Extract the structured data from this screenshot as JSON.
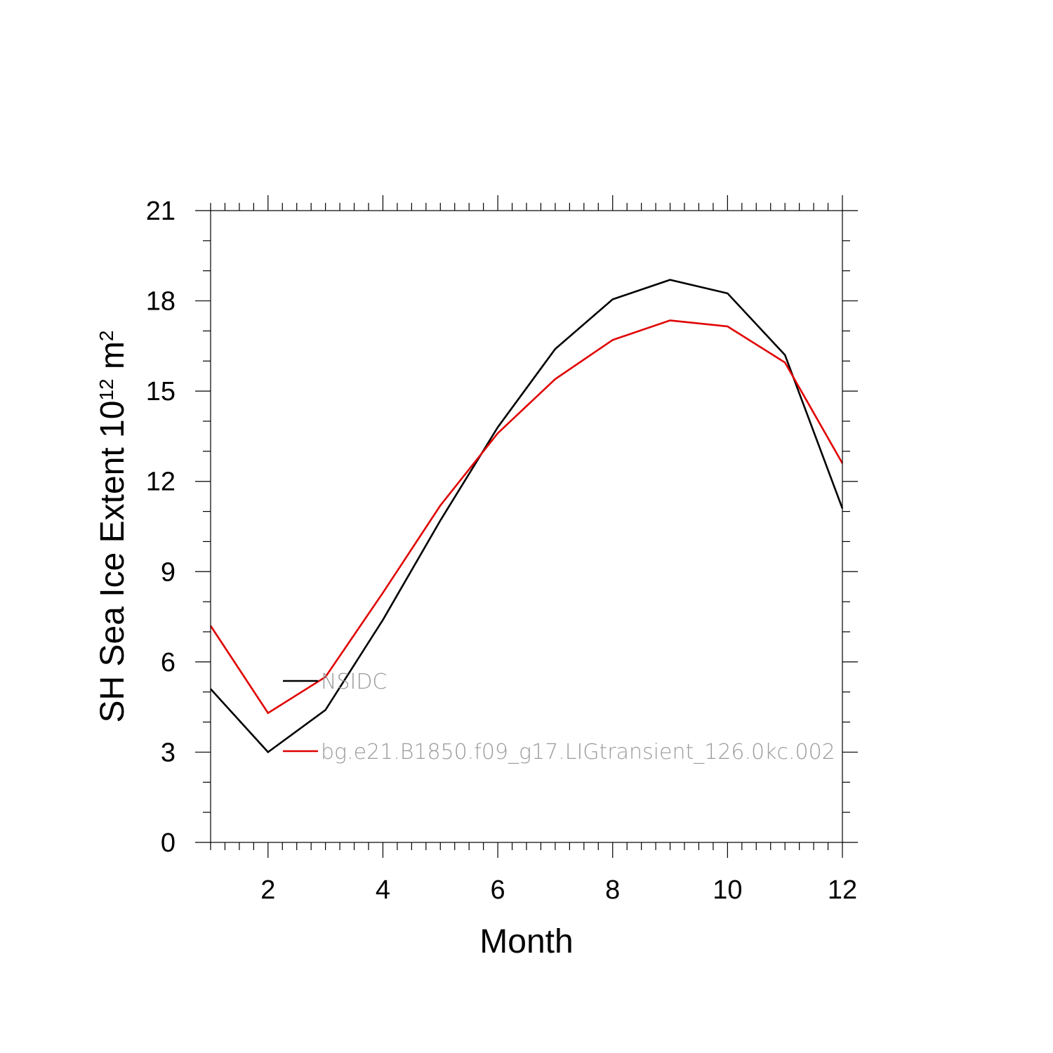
{
  "chart_data": {
    "type": "line",
    "xlabel": "Month",
    "ylabel": {
      "main": "SH Sea Ice Extent 10",
      "exponent": "12",
      "unit": "m",
      "unit_exponent": "2"
    },
    "xlim": [
      1,
      12
    ],
    "ylim": [
      0,
      21
    ],
    "x_ticks": [
      2,
      4,
      6,
      8,
      10,
      12
    ],
    "y_ticks": [
      0,
      3,
      6,
      9,
      12,
      15,
      18,
      21
    ],
    "x_tick_labels": [
      "2",
      "4",
      "6",
      "8",
      "10",
      "12"
    ],
    "y_tick_labels": [
      "0",
      "3",
      "6",
      "9",
      "12",
      "15",
      "18",
      "21"
    ],
    "x": [
      1,
      2,
      3,
      4,
      5,
      6,
      7,
      8,
      9,
      10,
      11,
      12
    ],
    "grid": false,
    "legend_position": "inside-left",
    "series": [
      {
        "name": "NSIDC",
        "color": "#000000",
        "values": [
          5.1,
          3.0,
          4.4,
          7.4,
          10.7,
          13.8,
          16.4,
          18.05,
          18.7,
          18.25,
          16.2,
          11.1
        ]
      },
      {
        "name": "bg.e21.B1850.f09_g17.LIGtransient_126.0kc.002",
        "color": "#e00000",
        "values": [
          7.2,
          4.3,
          5.5,
          8.3,
          11.2,
          13.6,
          15.4,
          16.7,
          17.35,
          17.15,
          15.95,
          12.6
        ]
      }
    ]
  }
}
